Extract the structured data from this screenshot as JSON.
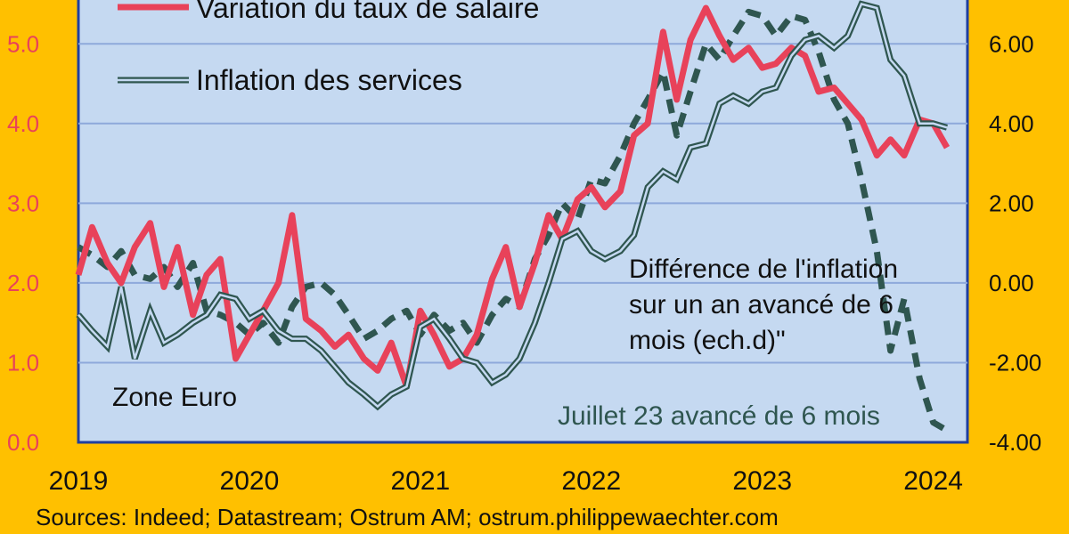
{
  "chart_data": {
    "type": "line",
    "legend": {
      "wages": "Variation du taux de salaire",
      "services": "Inflation des services"
    },
    "annotations": {
      "zone": "Zone Euro",
      "right_series_1": "Différence de l'inflation",
      "right_series_2": "sur un an avancé de 6",
      "right_series_3": "mois (ech.d)\"",
      "last_point": "Juillet 23 avancé de 6 mois"
    },
    "source": "Sources: Indeed; Datastream; Ostrum AM; ostrum.philippewaechter.com",
    "x_ticks": [
      "2019",
      "2020",
      "2021",
      "2022",
      "2023",
      "2024"
    ],
    "y_left_ticks": [
      "0.0",
      "1.0",
      "2.0",
      "3.0",
      "4.0",
      "5.0"
    ],
    "y_right_ticks": [
      "-4.00",
      "-2.00",
      "0.00",
      "2.00",
      "4.00",
      "6.00"
    ],
    "ylim_left": [
      0,
      5.55
    ],
    "ylim_right": [
      -4,
      7.1
    ],
    "xlim": [
      2019.0,
      2024.2
    ],
    "grid": "horizontal",
    "colors": {
      "wages": "#E8425A",
      "services": "#2F5650",
      "diff": "#2F5650",
      "plot_bg": "#C5D9F1",
      "frame_bg": "#FFC000",
      "grid": "#8EA9DB",
      "axis": "#1F3FA0"
    },
    "series": [
      {
        "name": "Variation du taux de salaire",
        "axis": "left",
        "style": "solid",
        "x": [
          2019.0,
          2019.08,
          2019.17,
          2019.25,
          2019.33,
          2019.42,
          2019.5,
          2019.58,
          2019.67,
          2019.75,
          2019.83,
          2019.92,
          2020.0,
          2020.08,
          2020.17,
          2020.25,
          2020.33,
          2020.42,
          2020.5,
          2020.58,
          2020.67,
          2020.75,
          2020.83,
          2020.92,
          2021.0,
          2021.08,
          2021.17,
          2021.25,
          2021.33,
          2021.42,
          2021.5,
          2021.58,
          2021.67,
          2021.75,
          2021.83,
          2021.92,
          2022.0,
          2022.08,
          2022.17,
          2022.25,
          2022.33,
          2022.42,
          2022.5,
          2022.58,
          2022.67,
          2022.75,
          2022.83,
          2022.92,
          2023.0,
          2023.08,
          2023.17,
          2023.25,
          2023.33,
          2023.42,
          2023.5,
          2023.58,
          2023.67,
          2023.75,
          2023.83,
          2023.92,
          2024.0,
          2024.08
        ],
        "values": [
          2.1,
          2.7,
          2.25,
          2.0,
          2.45,
          2.75,
          1.95,
          2.45,
          1.6,
          2.1,
          2.3,
          1.05,
          1.35,
          1.65,
          2.0,
          2.85,
          1.55,
          1.4,
          1.2,
          1.35,
          1.05,
          0.9,
          1.25,
          0.7,
          1.65,
          1.35,
          0.95,
          1.05,
          1.35,
          2.05,
          2.45,
          1.7,
          2.25,
          2.85,
          2.55,
          3.05,
          3.2,
          2.95,
          3.15,
          3.85,
          4.0,
          5.15,
          4.3,
          5.05,
          5.45,
          5.1,
          4.8,
          4.95,
          4.7,
          4.75,
          4.95,
          4.85,
          4.4,
          4.45,
          4.25,
          4.05,
          3.6,
          3.8,
          3.6,
          4.05,
          4.0,
          3.7
        ]
      },
      {
        "name": "Inflation des services",
        "axis": "left",
        "style": "double",
        "x": [
          2019.0,
          2019.08,
          2019.17,
          2019.25,
          2019.33,
          2019.42,
          2019.5,
          2019.58,
          2019.67,
          2019.75,
          2019.83,
          2019.92,
          2020.0,
          2020.08,
          2020.17,
          2020.25,
          2020.33,
          2020.42,
          2020.5,
          2020.58,
          2020.67,
          2020.75,
          2020.83,
          2020.92,
          2021.0,
          2021.08,
          2021.17,
          2021.25,
          2021.33,
          2021.42,
          2021.5,
          2021.58,
          2021.67,
          2021.75,
          2021.83,
          2021.92,
          2022.0,
          2022.08,
          2022.17,
          2022.25,
          2022.33,
          2022.42,
          2022.5,
          2022.58,
          2022.67,
          2022.75,
          2022.83,
          2022.92,
          2023.0,
          2023.08,
          2023.17,
          2023.25,
          2023.33,
          2023.42,
          2023.5,
          2023.58,
          2023.67,
          2023.75,
          2023.83,
          2023.92,
          2024.0,
          2024.08
        ],
        "values": [
          1.6,
          1.4,
          1.2,
          1.95,
          1.05,
          1.65,
          1.25,
          1.35,
          1.5,
          1.6,
          1.85,
          1.8,
          1.55,
          1.65,
          1.4,
          1.3,
          1.3,
          1.15,
          0.95,
          0.75,
          0.6,
          0.45,
          0.6,
          0.7,
          1.45,
          1.55,
          1.3,
          1.05,
          1.0,
          0.75,
          0.85,
          1.05,
          1.5,
          2.0,
          2.55,
          2.65,
          2.4,
          2.3,
          2.4,
          2.6,
          3.2,
          3.4,
          3.3,
          3.7,
          3.75,
          4.25,
          4.35,
          4.25,
          4.4,
          4.45,
          4.85,
          5.05,
          5.1,
          4.95,
          5.1,
          5.5,
          5.45,
          4.8,
          4.6,
          4.0,
          4.0,
          3.95
        ]
      },
      {
        "name": "Différence de l'inflation sur un an avancé de 6 mois (ech.d)\"",
        "axis": "right",
        "style": "dashed",
        "x": [
          2019.0,
          2019.08,
          2019.17,
          2019.25,
          2019.33,
          2019.42,
          2019.5,
          2019.58,
          2019.67,
          2019.75,
          2019.83,
          2019.92,
          2020.0,
          2020.08,
          2020.17,
          2020.25,
          2020.33,
          2020.42,
          2020.5,
          2020.58,
          2020.67,
          2020.75,
          2020.83,
          2020.92,
          2021.0,
          2021.08,
          2021.17,
          2021.25,
          2021.33,
          2021.42,
          2021.5,
          2021.58,
          2021.67,
          2021.75,
          2021.83,
          2021.92,
          2022.0,
          2022.08,
          2022.17,
          2022.25,
          2022.33,
          2022.42,
          2022.5,
          2022.58,
          2022.67,
          2022.75,
          2022.83,
          2022.92,
          2023.0,
          2023.08,
          2023.17,
          2023.25,
          2023.33,
          2023.42,
          2023.5,
          2023.58,
          2023.67,
          2023.75,
          2023.83,
          2023.92,
          2024.0,
          2024.08
        ],
        "values": [
          0.9,
          0.7,
          0.4,
          0.8,
          0.2,
          0.1,
          0.4,
          -0.1,
          0.5,
          -0.7,
          -0.8,
          -1.0,
          -1.3,
          -1.0,
          -1.5,
          -0.6,
          -0.1,
          0.0,
          -0.3,
          -0.8,
          -1.4,
          -1.2,
          -0.9,
          -0.7,
          -1.3,
          -0.8,
          -1.2,
          -1.0,
          -1.5,
          -0.8,
          -0.4,
          -0.6,
          0.6,
          1.2,
          2.0,
          1.6,
          2.6,
          2.5,
          3.2,
          4.0,
          4.6,
          5.3,
          3.7,
          4.8,
          6.0,
          5.6,
          6.2,
          6.8,
          6.7,
          6.2,
          6.7,
          6.6,
          5.8,
          4.6,
          4.0,
          2.6,
          0.8,
          -1.7,
          -0.4,
          -2.4,
          -3.5,
          -3.7
        ]
      }
    ]
  }
}
